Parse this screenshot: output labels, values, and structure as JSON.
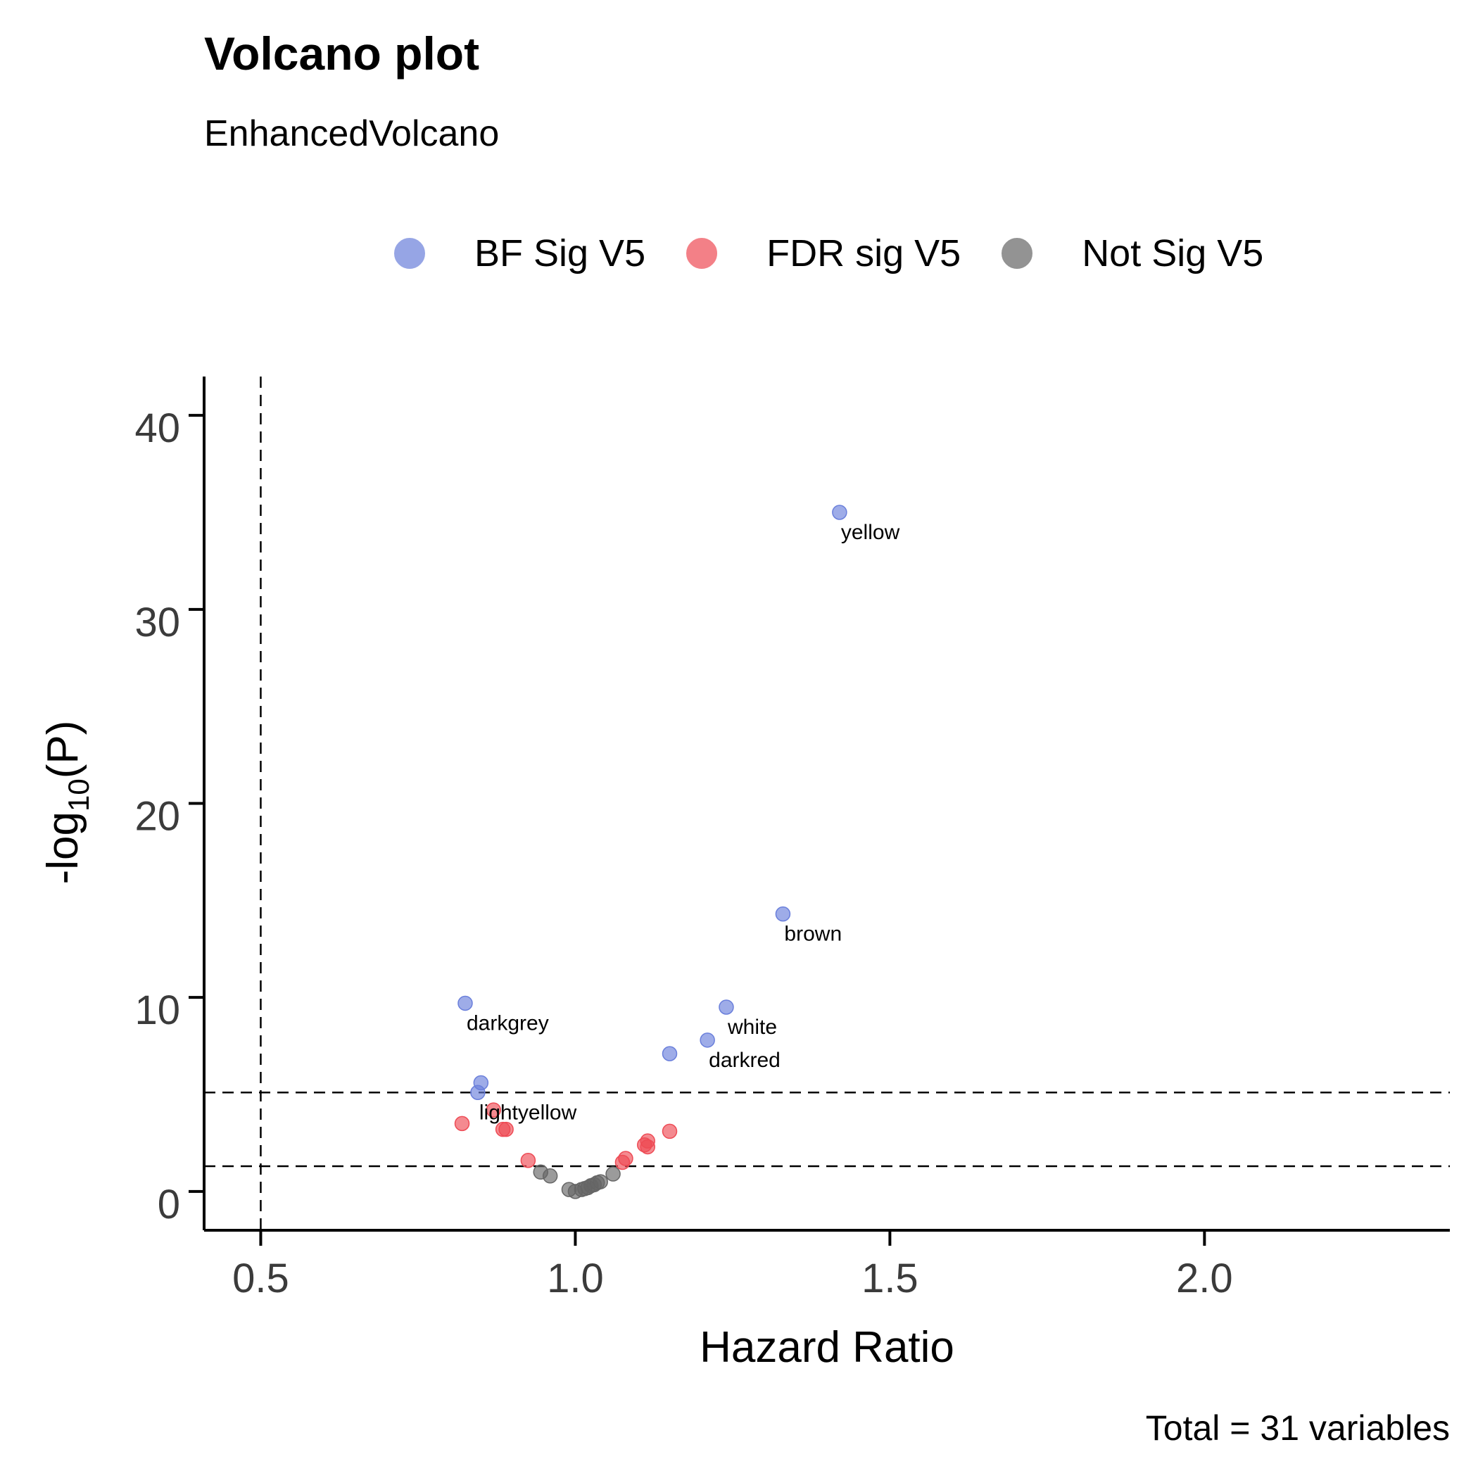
{
  "title": "Volcano plot",
  "subtitle": "EnhancedVolcano",
  "caption": "Total = 31 variables",
  "legend": [
    {
      "label": "BF Sig V5",
      "color": "#6a7fdb"
    },
    {
      "label": "FDR sig V5",
      "color": "#ee4b55"
    },
    {
      "label": "Not Sig V5",
      "color": "#666666"
    }
  ],
  "chart_data": {
    "type": "scatter",
    "title": "Volcano plot",
    "subtitle": "EnhancedVolcano",
    "xlabel": "Hazard Ratio",
    "ylabel": "-log10(P)",
    "xlim": [
      0.41,
      2.39
    ],
    "ylim": [
      -2,
      42
    ],
    "xticks": [
      "0.5",
      "1.0",
      "1.5",
      "2.0"
    ],
    "yticks": [
      "0",
      "10",
      "20",
      "30",
      "40"
    ],
    "xtick_values": [
      0.5,
      1.0,
      1.5,
      2.0
    ],
    "ytick_values": [
      0,
      10,
      20,
      30,
      40
    ],
    "vlines": [
      0.5
    ],
    "hlines": [
      5.1,
      1.3
    ],
    "grid": false,
    "legend_position": "top",
    "series": [
      {
        "name": "BF Sig V5",
        "color": "#6a7fdb",
        "points": [
          {
            "x": 1.42,
            "y": 35.0,
            "label": "yellow"
          },
          {
            "x": 1.33,
            "y": 14.3,
            "label": "brown"
          },
          {
            "x": 0.825,
            "y": 9.7,
            "label": "darkgrey"
          },
          {
            "x": 1.24,
            "y": 9.5,
            "label": "white"
          },
          {
            "x": 1.21,
            "y": 7.8,
            "label": "darkred"
          },
          {
            "x": 1.15,
            "y": 7.1
          },
          {
            "x": 0.85,
            "y": 5.6
          },
          {
            "x": 0.845,
            "y": 5.1,
            "label": "lightyellow"
          }
        ]
      },
      {
        "name": "FDR sig V5",
        "color": "#ee4b55",
        "points": [
          {
            "x": 0.87,
            "y": 4.2
          },
          {
            "x": 0.82,
            "y": 3.5
          },
          {
            "x": 0.885,
            "y": 3.2
          },
          {
            "x": 0.89,
            "y": 3.2
          },
          {
            "x": 1.15,
            "y": 3.1
          },
          {
            "x": 1.115,
            "y": 2.6
          },
          {
            "x": 1.11,
            "y": 2.4
          },
          {
            "x": 1.115,
            "y": 2.3
          },
          {
            "x": 0.925,
            "y": 1.6
          },
          {
            "x": 1.08,
            "y": 1.7
          },
          {
            "x": 1.075,
            "y": 1.5
          }
        ]
      },
      {
        "name": "Not Sig V5",
        "color": "#666666",
        "points": [
          {
            "x": 0.945,
            "y": 1.0
          },
          {
            "x": 0.96,
            "y": 0.8
          },
          {
            "x": 1.06,
            "y": 0.9
          },
          {
            "x": 1.04,
            "y": 0.5
          },
          {
            "x": 1.035,
            "y": 0.45
          },
          {
            "x": 1.03,
            "y": 0.35
          },
          {
            "x": 1.02,
            "y": 0.2
          },
          {
            "x": 1.015,
            "y": 0.15
          },
          {
            "x": 0.99,
            "y": 0.1
          },
          {
            "x": 1.0,
            "y": 0.0
          },
          {
            "x": 1.025,
            "y": 0.3
          },
          {
            "x": 1.01,
            "y": 0.1
          }
        ]
      }
    ]
  }
}
